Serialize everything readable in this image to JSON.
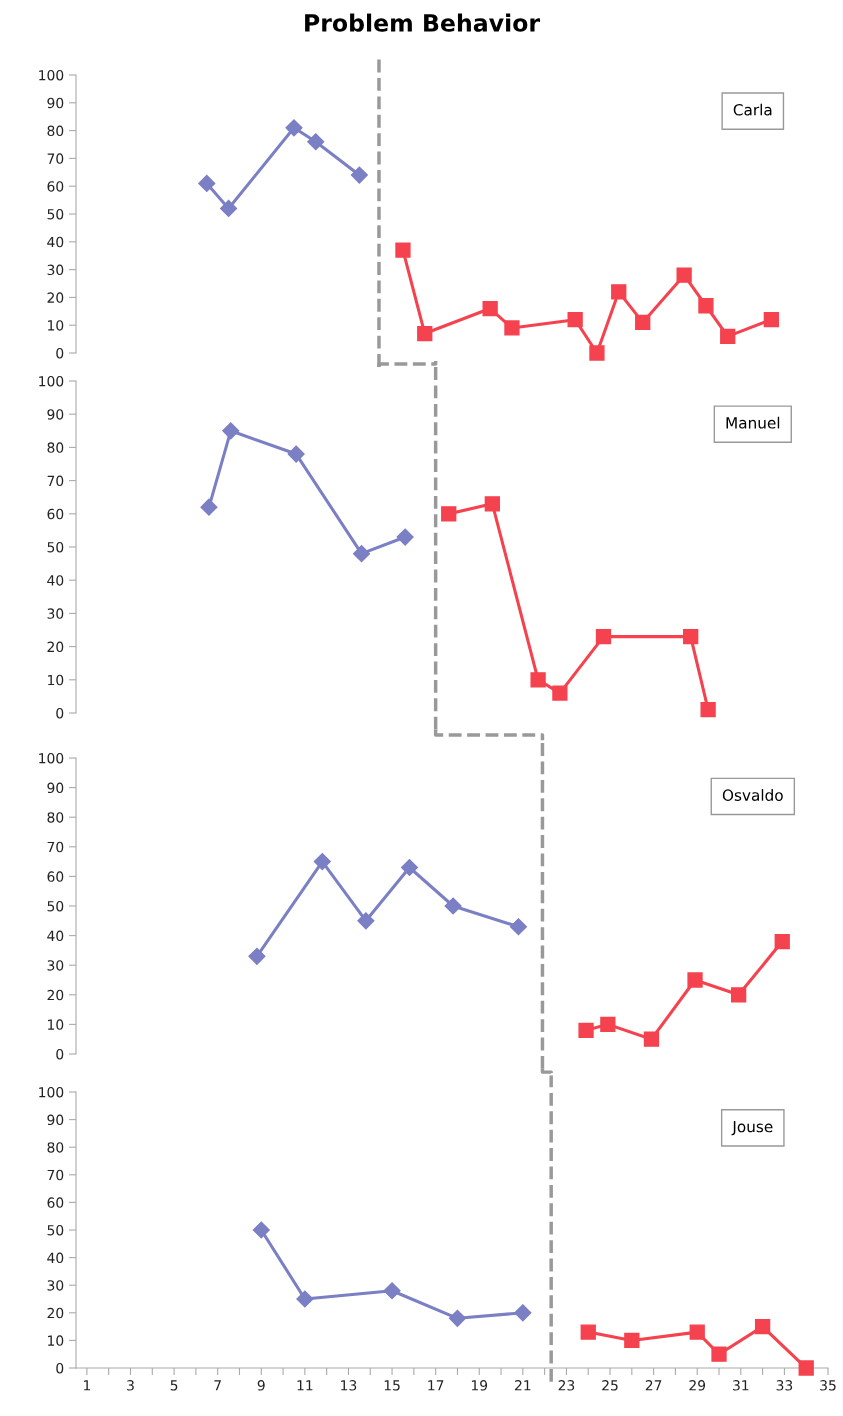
{
  "chart_data": [
    {
      "type": "line",
      "title": "Problem Behavior",
      "xlim": [
        0.5,
        35
      ],
      "ylim": [
        0,
        100
      ],
      "yticks": [
        0,
        10,
        20,
        30,
        40,
        50,
        60,
        70,
        80,
        90,
        100
      ],
      "tick_labels": "y",
      "line_style": "solid",
      "annotations": [
        "Carla"
      ],
      "ref_lines": [
        {
          "axis": "x",
          "value": 14.4,
          "color": "#999999",
          "line_style": "dashed"
        }
      ],
      "series": [
        {
          "color": "#7b7fc4",
          "marker": "diamond",
          "x": [
            6.5,
            7.5,
            10.5,
            11.5,
            13.5
          ],
          "values": [
            61,
            52,
            81,
            76,
            64
          ]
        },
        {
          "color": "#f5424f",
          "marker": "square",
          "x": [
            15.5,
            16.5,
            19.5,
            20.5,
            23.4,
            24.4,
            25.4,
            26.5,
            28.4,
            29.4,
            30.4,
            32.4
          ],
          "values": [
            37,
            7,
            16,
            9,
            12,
            0,
            22,
            11,
            28,
            17,
            6,
            12
          ]
        }
      ]
    },
    {
      "type": "line",
      "xlim": [
        0.5,
        35
      ],
      "ylim": [
        0,
        100
      ],
      "yticks": [
        0,
        10,
        20,
        30,
        40,
        50,
        60,
        70,
        80,
        90,
        100
      ],
      "tick_labels": "y",
      "line_style": "solid",
      "annotations": [
        "Manuel"
      ],
      "ref_lines": [
        {
          "axis": "x",
          "value": 17.0,
          "color": "#999999",
          "line_style": "dashed"
        }
      ],
      "series": [
        {
          "color": "#7b7fc4",
          "marker": "diamond",
          "x": [
            6.6,
            7.6,
            10.6,
            13.6,
            15.6
          ],
          "values": [
            62,
            85,
            78,
            48,
            53
          ]
        },
        {
          "color": "#f5424f",
          "marker": "square",
          "x": [
            17.6,
            19.6,
            21.7,
            22.7,
            24.7,
            28.7,
            29.5
          ],
          "values": [
            60,
            63,
            10,
            6,
            23,
            23,
            1
          ]
        }
      ]
    },
    {
      "type": "line",
      "xlim": [
        0.5,
        35
      ],
      "ylim": [
        0,
        100
      ],
      "yticks": [
        0,
        10,
        20,
        30,
        40,
        50,
        60,
        70,
        80,
        90,
        100
      ],
      "tick_labels": "y",
      "line_style": "solid",
      "annotations": [
        "Osvaldo"
      ],
      "ref_lines": [
        {
          "axis": "x",
          "value": 21.9,
          "color": "#999999",
          "line_style": "dashed"
        }
      ],
      "series": [
        {
          "color": "#7b7fc4",
          "marker": "diamond",
          "x": [
            8.8,
            11.8,
            13.8,
            15.8,
            17.8,
            20.8
          ],
          "values": [
            33,
            65,
            45,
            63,
            50,
            43
          ]
        },
        {
          "color": "#f5424f",
          "marker": "square",
          "x": [
            23.9,
            24.9,
            26.9,
            28.9,
            30.9,
            32.9
          ],
          "values": [
            8,
            10,
            5,
            25,
            20,
            38
          ]
        }
      ]
    },
    {
      "type": "line",
      "xlim": [
        0.5,
        35
      ],
      "ylim": [
        0,
        100
      ],
      "yticks": [
        0,
        10,
        20,
        30,
        40,
        50,
        60,
        70,
        80,
        90,
        100
      ],
      "xticks": [
        1,
        {
          "value": 2,
          "label": null
        },
        3,
        {
          "value": 4,
          "label": null
        },
        5,
        {
          "value": 6,
          "label": null
        },
        7,
        {
          "value": 8,
          "label": null
        },
        9,
        {
          "value": 10,
          "label": null
        },
        11,
        {
          "value": 12,
          "label": null
        },
        13,
        {
          "value": 14,
          "label": null
        },
        15,
        {
          "value": 16,
          "label": null
        },
        17,
        {
          "value": 18,
          "label": null
        },
        19,
        {
          "value": 20,
          "label": null
        },
        21,
        {
          "value": 22,
          "label": null
        },
        23,
        {
          "value": 24,
          "label": null
        },
        25,
        {
          "value": 26,
          "label": null
        },
        27,
        {
          "value": 28,
          "label": null
        },
        29,
        {
          "value": 30,
          "label": null
        },
        31,
        {
          "value": 32,
          "label": null
        },
        33,
        {
          "value": 34,
          "label": null
        },
        35
      ],
      "line_style": "solid",
      "annotations": [
        "Jouse"
      ],
      "ref_lines": [
        {
          "axis": "x",
          "value": 22.3,
          "color": "#999999",
          "line_style": "dashed"
        }
      ],
      "series": [
        {
          "color": "#7b7fc4",
          "marker": "diamond",
          "x": [
            9,
            11,
            15,
            18,
            21
          ],
          "values": [
            50,
            25,
            28,
            18,
            20
          ]
        },
        {
          "color": "#f5424f",
          "marker": "square",
          "x": [
            24,
            26,
            29,
            30,
            32,
            34
          ],
          "values": [
            13,
            10,
            13,
            5,
            15,
            0
          ]
        }
      ]
    }
  ]
}
